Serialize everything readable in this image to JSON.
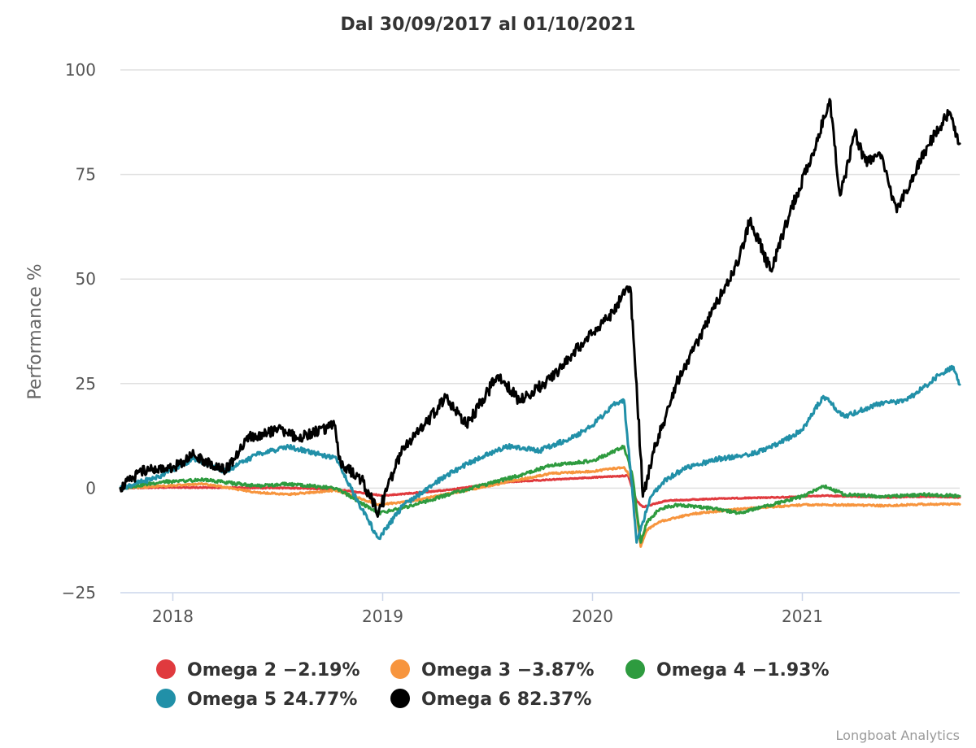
{
  "chart_data": {
    "type": "line",
    "title": "Dal 30/09/2017 al 01/10/2021",
    "xlabel": "",
    "ylabel": "Performance %",
    "xlim": [
      2017.75,
      2021.75
    ],
    "ylim": [
      -25,
      100
    ],
    "y_ticks": [
      -25,
      0,
      25,
      50,
      75,
      100
    ],
    "y_tick_labels": [
      "−25",
      "0",
      "25",
      "50",
      "75",
      "100"
    ],
    "x_ticks": [
      2018,
      2019,
      2020,
      2021
    ],
    "x_tick_labels": [
      "2018",
      "2019",
      "2020",
      "2021"
    ],
    "grid": true,
    "legend_position": "bottom",
    "credits": "Longboat Analytics",
    "series": [
      {
        "name": "Omega 2",
        "legend_label": "Omega 2 −2.19%",
        "color": "#e03a3e",
        "x": [
          2017.75,
          2018.0,
          2018.3,
          2018.6,
          2018.78,
          2019.0,
          2019.3,
          2019.6,
          2019.9,
          2020.1,
          2020.17,
          2020.21,
          2020.24,
          2020.35,
          2020.6,
          2020.9,
          2021.1,
          2021.4,
          2021.6,
          2021.75
        ],
        "y": [
          0,
          0.2,
          0.1,
          0.0,
          -0.3,
          -1.8,
          -0.5,
          1.5,
          2.3,
          2.8,
          3.0,
          -3.0,
          -4.5,
          -3.0,
          -2.5,
          -2.2,
          -1.8,
          -2.2,
          -2.0,
          -2.19
        ]
      },
      {
        "name": "Omega 3",
        "legend_label": "Omega 3 −3.87%",
        "color": "#f7953e",
        "x": [
          2017.75,
          2017.95,
          2018.15,
          2018.4,
          2018.55,
          2018.78,
          2018.98,
          2019.15,
          2019.35,
          2019.5,
          2019.65,
          2019.8,
          2020.0,
          2020.15,
          2020.19,
          2020.23,
          2020.26,
          2020.32,
          2020.4,
          2020.5,
          2020.6,
          2020.7,
          2020.85,
          2021.0,
          2021.2,
          2021.4,
          2021.6,
          2021.75
        ],
        "y": [
          0,
          0.5,
          1.0,
          -1.0,
          -1.5,
          -0.5,
          -4.0,
          -3.0,
          -1.0,
          0.5,
          2.0,
          3.5,
          4.0,
          5.0,
          2.0,
          -14.0,
          -10.0,
          -8.0,
          -7.0,
          -6.0,
          -5.5,
          -5.0,
          -4.5,
          -4.0,
          -4.0,
          -4.2,
          -3.8,
          -3.87
        ]
      },
      {
        "name": "Omega 4",
        "legend_label": "Omega 4 −1.93%",
        "color": "#2e9b3f",
        "x": [
          2017.75,
          2017.95,
          2018.15,
          2018.4,
          2018.55,
          2018.78,
          2018.98,
          2019.15,
          2019.35,
          2019.5,
          2019.65,
          2019.8,
          2020.0,
          2020.15,
          2020.19,
          2020.23,
          2020.26,
          2020.32,
          2020.4,
          2020.5,
          2020.6,
          2020.7,
          2020.85,
          2021.0,
          2021.1,
          2021.2,
          2021.4,
          2021.6,
          2021.75
        ],
        "y": [
          0,
          1.5,
          2.0,
          0.5,
          1.0,
          0.0,
          -6.0,
          -4.0,
          -1.0,
          1.0,
          3.0,
          5.5,
          6.5,
          10.0,
          3.0,
          -13.0,
          -8.0,
          -5.0,
          -4.0,
          -4.5,
          -5.0,
          -6.0,
          -4.0,
          -2.0,
          0.5,
          -1.5,
          -2.0,
          -1.5,
          -1.93
        ]
      },
      {
        "name": "Omega 5",
        "legend_label": "Omega 5 24.77%",
        "color": "#2190a8",
        "x": [
          2017.75,
          2017.95,
          2018.1,
          2018.25,
          2018.4,
          2018.55,
          2018.7,
          2018.78,
          2018.9,
          2018.98,
          2019.1,
          2019.3,
          2019.45,
          2019.6,
          2019.75,
          2019.9,
          2020.0,
          2020.1,
          2020.15,
          2020.18,
          2020.21,
          2020.24,
          2020.28,
          2020.35,
          2020.45,
          2020.6,
          2020.75,
          2020.9,
          2021.0,
          2021.1,
          2021.2,
          2021.35,
          2021.5,
          2021.65,
          2021.72,
          2021.75
        ],
        "y": [
          0,
          3.0,
          7.0,
          4.0,
          8.0,
          10.0,
          8.0,
          7.0,
          -5.0,
          -12.0,
          -4.0,
          3.0,
          7.0,
          10.0,
          9.0,
          12.0,
          15.0,
          20.0,
          21.0,
          5.0,
          -13.0,
          -8.0,
          -2.0,
          2.0,
          5.0,
          7.0,
          8.0,
          11.0,
          14.0,
          22.0,
          17.0,
          20.0,
          21.0,
          27.0,
          29.0,
          24.77
        ]
      },
      {
        "name": "Omega 6",
        "legend_label": "Omega 6 82.37%",
        "color": "#000000",
        "x": [
          2017.75,
          2017.85,
          2018.0,
          2018.1,
          2018.25,
          2018.35,
          2018.5,
          2018.6,
          2018.77,
          2018.8,
          2018.9,
          2018.98,
          2019.1,
          2019.2,
          2019.3,
          2019.4,
          2019.55,
          2019.65,
          2019.8,
          2019.9,
          2020.0,
          2020.1,
          2020.14,
          2020.18,
          2020.21,
          2020.24,
          2020.3,
          2020.4,
          2020.5,
          2020.6,
          2020.7,
          2020.75,
          2020.85,
          2020.95,
          2021.05,
          2021.13,
          2021.18,
          2021.25,
          2021.3,
          2021.37,
          2021.45,
          2021.6,
          2021.7,
          2021.75
        ],
        "y": [
          0,
          4.0,
          5.0,
          8.0,
          4.0,
          12.0,
          14.0,
          12.0,
          15.0,
          6.0,
          2.0,
          -6.0,
          10.0,
          15.0,
          22.0,
          15.0,
          27.0,
          21.0,
          26.0,
          32.0,
          37.0,
          42.0,
          46.0,
          48.0,
          25.0,
          -2.0,
          10.0,
          25.0,
          35.0,
          45.0,
          55.0,
          64.0,
          52.0,
          67.0,
          80.0,
          93.0,
          70.0,
          85.0,
          78.0,
          80.0,
          66.0,
          82.0,
          90.0,
          82.37
        ]
      }
    ]
  }
}
